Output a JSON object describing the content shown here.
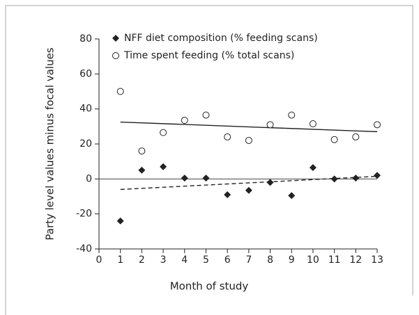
{
  "chart_data": {
    "type": "scatter",
    "xlabel": "Month of study",
    "ylabel": "Party level values minus focal values",
    "x": [
      1,
      2,
      3,
      4,
      5,
      6,
      7,
      8,
      9,
      10,
      11,
      12,
      13
    ],
    "series": [
      {
        "name": "NFF diet composition (% feeding scans)",
        "marker": "diamond",
        "color": "#222222",
        "values": [
          -24,
          5,
          7,
          0.5,
          0.5,
          -9,
          -6.5,
          -2,
          -9.5,
          6.5,
          0,
          0.5,
          2
        ]
      },
      {
        "name": "Time spent feeding (% total scans)",
        "marker": "circle",
        "color": "#222222",
        "values": [
          50,
          16,
          26.5,
          33.5,
          36.5,
          24,
          22,
          31,
          36.5,
          31.5,
          22.5,
          24,
          31
        ]
      }
    ],
    "trend_lines": [
      {
        "x": [
          1,
          13
        ],
        "values": [
          32.5,
          27
        ],
        "style": "solid"
      },
      {
        "x": [
          1,
          13
        ],
        "values": [
          -6,
          1.5
        ],
        "style": "dashed"
      }
    ],
    "reference_line": 0,
    "xlim": [
      0,
      13
    ],
    "xticks": [
      0,
      1,
      2,
      3,
      4,
      5,
      6,
      7,
      8,
      9,
      10,
      11,
      12,
      13
    ],
    "ylim": [
      -40,
      80
    ],
    "yticks": [
      -40,
      -20,
      0,
      20,
      40,
      60,
      80
    ],
    "legend": "upper left"
  }
}
